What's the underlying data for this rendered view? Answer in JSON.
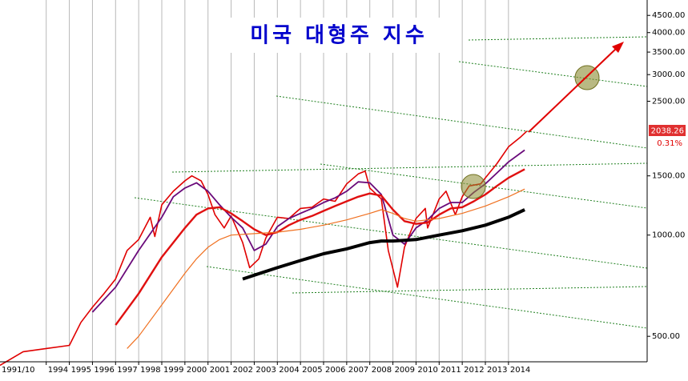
{
  "chart_data": {
    "type": "line",
    "title": "미국 대형주 지수",
    "log_scale": true,
    "grid": true,
    "xlim": [
      1992,
      2020
    ],
    "ylim": [
      420,
      5000
    ],
    "xticks": [
      {
        "value": 1991.83,
        "label": "1991/10"
      },
      1994,
      1995,
      1996,
      1997,
      1998,
      1999,
      2000,
      2001,
      2002,
      2003,
      2004,
      2005,
      2006,
      2007,
      2008,
      2009,
      2010,
      2011,
      2012,
      2013,
      2014
    ],
    "yticks": [
      {
        "value": 500,
        "label": "500.00"
      },
      {
        "value": 1000,
        "label": "1000.00"
      },
      {
        "value": 1500,
        "label": "1500.00"
      },
      {
        "value": 2500,
        "label": "2500.00"
      },
      {
        "value": 3000,
        "label": "3000.00"
      },
      {
        "value": 3500,
        "label": "3500.00"
      },
      {
        "value": 4000,
        "label": "4000.00"
      },
      {
        "value": 4500,
        "label": "4500.00"
      }
    ],
    "series": [
      {
        "color": "#e00000",
        "width": 1.6,
        "x": [
          1992,
          1993,
          1994,
          1995,
          1995.5,
          1996,
          1996.5,
          1997,
          1997.5,
          1998,
          1998.5,
          1998.7,
          1999,
          1999.5,
          2000,
          2000.3,
          2000.7,
          2001,
          2001.3,
          2001.7,
          2002,
          2002.5,
          2002.8,
          2003.2,
          2003.5,
          2004,
          2004.5,
          2005,
          2005.5,
          2006,
          2006.5,
          2007,
          2007.5,
          2007.8,
          2008,
          2008.5,
          2008.8,
          2009.2,
          2009.5,
          2010,
          2010.4,
          2010.5,
          2011,
          2011.3,
          2011.7,
          2012,
          2012.3,
          2012.8,
          2013,
          2013.5,
          2014,
          2014.5,
          2014.8
        ],
        "values": [
          410,
          450,
          460,
          470,
          550,
          610,
          670,
          740,
          900,
          970,
          1130,
          990,
          1230,
          1350,
          1450,
          1500,
          1450,
          1320,
          1150,
          1050,
          1140,
          950,
          800,
          850,
          980,
          1130,
          1120,
          1200,
          1210,
          1280,
          1260,
          1420,
          1520,
          1550,
          1380,
          1280,
          900,
          700,
          920,
          1120,
          1200,
          1050,
          1280,
          1350,
          1150,
          1300,
          1400,
          1420,
          1480,
          1630,
          1830,
          1950,
          2038.26
        ]
      },
      {
        "color": "#6a0a7a",
        "width": 1.8,
        "x": [
          1996,
          1997,
          1998,
          1999,
          1999.5,
          2000,
          2000.5,
          2001,
          2001.5,
          2002,
          2002.5,
          2003,
          2003.5,
          2004,
          2004.5,
          2005,
          2005.5,
          2006,
          2006.5,
          2007,
          2007.5,
          2008,
          2008.5,
          2009,
          2009.5,
          2010,
          2010.5,
          2011,
          2011.5,
          2012,
          2012.5,
          2013,
          2013.5,
          2014,
          2014.7
        ],
        "values": [
          590,
          700,
          900,
          1130,
          1300,
          1380,
          1430,
          1350,
          1230,
          1130,
          1050,
          900,
          940,
          1060,
          1120,
          1160,
          1200,
          1250,
          1290,
          1350,
          1440,
          1430,
          1320,
          1000,
          940,
          1050,
          1110,
          1200,
          1250,
          1250,
          1340,
          1420,
          1530,
          1650,
          1790
        ]
      },
      {
        "color": "#e01010",
        "width": 2.4,
        "x": [
          1997,
          1998,
          1999,
          2000,
          2000.5,
          2001,
          2001.5,
          2002,
          2002.5,
          2003,
          2003.5,
          2004,
          2004.5,
          2005,
          2005.5,
          2006,
          2006.5,
          2007,
          2007.5,
          2008,
          2008.5,
          2009,
          2009.5,
          2010,
          2010.5,
          2011,
          2011.5,
          2012,
          2012.5,
          2013,
          2013.5,
          2014,
          2014.7
        ],
        "values": [
          540,
          670,
          860,
          1050,
          1150,
          1200,
          1210,
          1160,
          1100,
          1040,
          1000,
          1020,
          1070,
          1110,
          1140,
          1180,
          1220,
          1260,
          1300,
          1330,
          1310,
          1190,
          1100,
          1080,
          1090,
          1150,
          1200,
          1210,
          1260,
          1320,
          1400,
          1480,
          1570
        ]
      },
      {
        "color": "#f07020",
        "width": 1.2,
        "x": [
          1997.5,
          1998,
          1999,
          2000,
          2000.5,
          2001,
          2001.5,
          2002,
          2003,
          2004,
          2005,
          2006,
          2007,
          2008,
          2008.5,
          2009,
          2009.5,
          2010,
          2011,
          2012,
          2013,
          2014,
          2014.7
        ],
        "values": [
          460,
          500,
          620,
          770,
          850,
          920,
          970,
          1000,
          1010,
          1020,
          1040,
          1070,
          1110,
          1160,
          1190,
          1160,
          1120,
          1100,
          1120,
          1160,
          1220,
          1300,
          1370
        ]
      },
      {
        "color": "#000000",
        "width": 4,
        "x": [
          2002.5,
          2003,
          2004,
          2005,
          2006,
          2007,
          2008,
          2008.5,
          2009,
          2010,
          2011,
          2012,
          2013,
          2014,
          2014.7
        ],
        "values": [
          740,
          760,
          800,
          840,
          880,
          910,
          950,
          960,
          960,
          970,
          1000,
          1030,
          1070,
          1130,
          1190
        ]
      }
    ],
    "annotations": [
      {
        "text": "2038.26"
      },
      {
        "text": "0.31%"
      }
    ]
  }
}
